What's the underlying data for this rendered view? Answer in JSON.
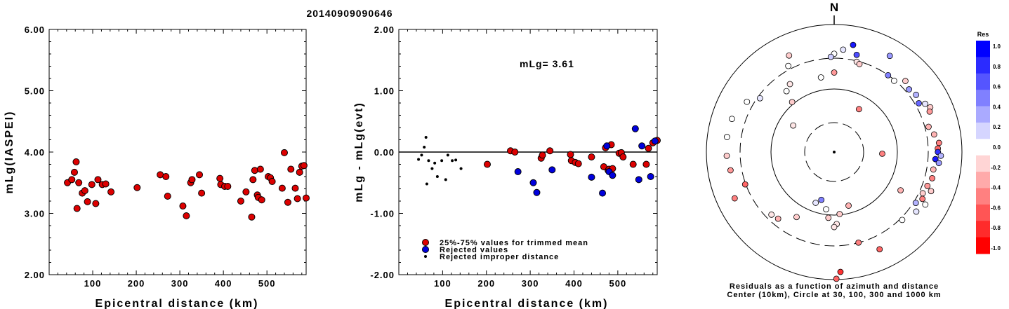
{
  "title": "20140909090646",
  "chart_data": [
    {
      "type": "scatter",
      "panel": "left",
      "xlabel": "Epicentral distance (km)",
      "ylabel": "mLg(IASPEI)",
      "xlim": [
        0,
        590
      ],
      "ylim": [
        2.0,
        6.0
      ],
      "xticks": [
        100,
        200,
        300,
        400,
        500
      ],
      "yticks": [
        "2.00",
        "3.00",
        "4.00",
        "5.00",
        "6.00"
      ],
      "series": [
        {
          "color": "#dd0000",
          "points": [
            [
              42,
              3.5
            ],
            [
              52,
              3.55
            ],
            [
              58,
              3.67
            ],
            [
              62,
              3.84
            ],
            [
              64,
              3.08
            ],
            [
              68,
              3.5
            ],
            [
              76,
              3.33
            ],
            [
              82,
              3.37
            ],
            [
              88,
              3.19
            ],
            [
              98,
              3.47
            ],
            [
              107,
              3.16
            ],
            [
              112,
              3.55
            ],
            [
              122,
              3.47
            ],
            [
              130,
              3.48
            ],
            [
              142,
              3.35
            ],
            [
              202,
              3.42
            ],
            [
              255,
              3.63
            ],
            [
              268,
              3.6
            ],
            [
              272,
              3.28
            ],
            [
              307,
              3.12
            ],
            [
              315,
              2.96
            ],
            [
              325,
              3.5
            ],
            [
              328,
              3.55
            ],
            [
              345,
              3.63
            ],
            [
              350,
              3.33
            ],
            [
              392,
              3.57
            ],
            [
              394,
              3.47
            ],
            [
              403,
              3.44
            ],
            [
              410,
              3.44
            ],
            [
              440,
              3.2
            ],
            [
              452,
              3.35
            ],
            [
              465,
              2.94
            ],
            [
              468,
              3.55
            ],
            [
              472,
              3.7
            ],
            [
              478,
              3.3
            ],
            [
              480,
              3.26
            ],
            [
              485,
              3.72
            ],
            [
              488,
              3.22
            ],
            [
              503,
              3.6
            ],
            [
              508,
              3.58
            ],
            [
              512,
              3.52
            ],
            [
              535,
              3.41
            ],
            [
              540,
              3.99
            ],
            [
              548,
              3.18
            ],
            [
              555,
              3.72
            ],
            [
              565,
              3.41
            ],
            [
              570,
              3.24
            ],
            [
              575,
              3.67
            ],
            [
              580,
              3.77
            ],
            [
              585,
              3.78
            ],
            [
              592,
              3.8
            ],
            [
              590,
              3.25
            ]
          ]
        }
      ]
    },
    {
      "type": "scatter",
      "panel": "middle",
      "xlabel": "Epicentral distance (km)",
      "ylabel": "mLg - mLg(evt)",
      "xlim": [
        0,
        590
      ],
      "ylim": [
        -2.0,
        2.0
      ],
      "xticks": [
        100,
        200,
        300,
        400,
        500
      ],
      "yticks": [
        "-2.00",
        "-1.00",
        "0.00",
        "1.00",
        "2.00"
      ],
      "annotation": "mLg= 3.61",
      "series": [
        {
          "name": "25%-75% values for trimmed mean",
          "color": "#dd0000",
          "points": [
            [
              202,
              -0.2
            ],
            [
              255,
              0.02
            ],
            [
              265,
              0.0
            ],
            [
              325,
              -0.1
            ],
            [
              328,
              -0.05
            ],
            [
              345,
              0.02
            ],
            [
              392,
              -0.04
            ],
            [
              394,
              -0.14
            ],
            [
              403,
              -0.17
            ],
            [
              410,
              -0.19
            ],
            [
              440,
              -0.08
            ],
            [
              468,
              -0.24
            ],
            [
              472,
              0.07
            ],
            [
              478,
              -0.3
            ],
            [
              480,
              -0.28
            ],
            [
              485,
              0.12
            ],
            [
              488,
              -0.27
            ],
            [
              503,
              -0.02
            ],
            [
              508,
              -0.01
            ],
            [
              512,
              -0.08
            ],
            [
              535,
              -0.2
            ],
            [
              565,
              -0.2
            ],
            [
              570,
              0.06
            ],
            [
              580,
              0.15
            ],
            [
              590,
              0.19
            ]
          ]
        },
        {
          "name": "Rejected values",
          "color": "#0000dd",
          "points": [
            [
              272,
              -0.32
            ],
            [
              307,
              -0.5
            ],
            [
              315,
              -0.66
            ],
            [
              350,
              -0.29
            ],
            [
              440,
              -0.41
            ],
            [
              465,
              -0.67
            ],
            [
              475,
              0.1
            ],
            [
              480,
              -0.32
            ],
            [
              488,
              -0.38
            ],
            [
              540,
              0.38
            ],
            [
              548,
              -0.45
            ],
            [
              555,
              0.1
            ],
            [
              575,
              -0.4
            ],
            [
              585,
              0.18
            ],
            [
              592,
              -0.36
            ]
          ]
        },
        {
          "name": "Rejected improper distance",
          "color": "#000000",
          "points": [
            [
              45,
              -0.12
            ],
            [
              52,
              -0.05
            ],
            [
              58,
              0.08
            ],
            [
              62,
              0.24
            ],
            [
              64,
              -0.52
            ],
            [
              68,
              -0.14
            ],
            [
              76,
              -0.27
            ],
            [
              82,
              -0.18
            ],
            [
              88,
              -0.4
            ],
            [
              98,
              -0.14
            ],
            [
              107,
              -0.45
            ],
            [
              112,
              -0.05
            ],
            [
              122,
              -0.14
            ],
            [
              130,
              -0.13
            ],
            [
              142,
              -0.27
            ]
          ]
        }
      ]
    },
    {
      "type": "scatter",
      "panel": "polar",
      "north_label": "N",
      "caption_line1": "Residuals as a function of azimuth and distance",
      "caption_line2": "Center (10km), Circle at 30, 100, 300 and 1000 km",
      "rings_km": [
        30,
        100,
        300,
        1000
      ],
      "colorbar": {
        "title": "Res",
        "labels": [
          "1.0",
          "0.8",
          "0.6",
          "0.4",
          "0.2",
          "0.0",
          "-0.2",
          "-0.4",
          "-0.6",
          "-0.8",
          "-1.0"
        ],
        "colors": [
          "#0000ff",
          "#2b2bff",
          "#5555ff",
          "#8080ff",
          "#aaaaff",
          "#d5d5ff",
          "#ffffff",
          "#ffd5d5",
          "#ffaaaa",
          "#ff8080",
          "#ff5555",
          "#ff2b2b",
          "#ff0000"
        ]
      },
      "points_az_dist_res": [
        [
          0,
          1.31,
          0.0
        ],
        [
          5,
          1.37,
          0.1
        ],
        [
          10,
          1.45,
          0.9
        ],
        [
          13,
          1.33,
          0.7
        ],
        [
          14,
          1.24,
          -0.1
        ],
        [
          16,
          1.22,
          -0.2
        ],
        [
          30,
          1.48,
          0.4
        ],
        [
          35,
          1.25,
          0.5
        ],
        [
          40,
          1.24,
          0.0
        ],
        [
          45,
          1.34,
          -0.2
        ],
        [
          50,
          1.3,
          0.4
        ],
        [
          55,
          1.33,
          0.3
        ],
        [
          60,
          1.3,
          0.6
        ],
        [
          62,
          1.37,
          0.1
        ],
        [
          65,
          1.41,
          -0.2
        ],
        [
          67,
          1.38,
          -0.4
        ],
        [
          75,
          1.3,
          -0.3
        ],
        [
          80,
          1.35,
          -0.3
        ],
        [
          85,
          1.4,
          -0.5
        ],
        [
          88,
          1.38,
          -0.6
        ],
        [
          90,
          1.38,
          0.8
        ],
        [
          92,
          1.42,
          0.3
        ],
        [
          94,
          1.35,
          0.9
        ],
        [
          96,
          1.4,
          0.4
        ],
        [
          100,
          1.34,
          -0.3
        ],
        [
          105,
          1.35,
          -0.5
        ],
        [
          110,
          1.32,
          -0.4
        ],
        [
          112,
          1.39,
          -0.2
        ],
        [
          115,
          1.3,
          -0.2
        ],
        [
          118,
          1.33,
          -0.5
        ],
        [
          120,
          1.4,
          0.0
        ],
        [
          122,
          1.28,
          0.3
        ],
        [
          126,
          1.35,
          0.1
        ],
        [
          135,
          1.28,
          0.0
        ],
        [
          155,
          1.43,
          -0.6
        ],
        [
          165,
          1.25,
          -0.5
        ],
        [
          177,
          1.6,
          -0.8
        ],
        [
          179,
          1.69,
          -0.6
        ],
        [
          120,
          1.02,
          -0.3
        ],
        [
          0,
          1.06,
          -0.4
        ],
        [
          30,
          0.66,
          -0.5
        ],
        [
          92,
          0.64,
          -0.5
        ],
        [
          165,
          0.74,
          -0.3
        ],
        [
          175,
          0.83,
          -0.2
        ],
        [
          178,
          0.96,
          -0.1
        ],
        [
          180,
          1.0,
          -0.1
        ],
        [
          185,
          0.88,
          -0.2
        ],
        [
          188,
          0.77,
          0.0
        ],
        [
          195,
          0.66,
          0.5
        ],
        [
          200,
          0.72,
          0.1
        ],
        [
          210,
          1.0,
          -0.2
        ],
        [
          220,
          1.16,
          -0.3
        ],
        [
          225,
          1.18,
          -0.1
        ],
        [
          250,
          1.26,
          -0.6
        ],
        [
          245,
          1.46,
          -0.5
        ],
        [
          260,
          1.4,
          -0.4
        ],
        [
          268,
          1.43,
          -0.2
        ],
        [
          278,
          1.44,
          0.0
        ],
        [
          288,
          1.43,
          0.0
        ],
        [
          300,
          1.34,
          0.0
        ],
        [
          306,
          1.22,
          0.1
        ],
        [
          320,
          0.87,
          -0.2
        ],
        [
          322,
          1.03,
          0.0
        ],
        [
          327,
          1.08,
          -0.1
        ],
        [
          332,
          1.3,
          0.0
        ],
        [
          335,
          1.42,
          -0.2
        ],
        [
          303,
          0.65,
          -0.1
        ],
        [
          350,
          1.01,
          0.0
        ],
        [
          358,
          1.27,
          0.2
        ]
      ]
    }
  ]
}
